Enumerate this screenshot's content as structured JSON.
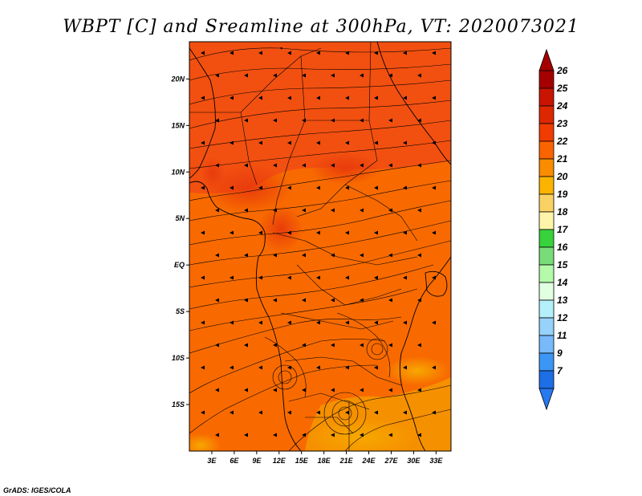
{
  "title": "WBPT [C] and Sreamline at 300hPa, VT: 2020073021",
  "credit": "GrADS: IGES/COLA",
  "map": {
    "lon_range": [
      0,
      35
    ],
    "lat_range": [
      -20,
      24
    ],
    "lat_ticks": [
      {
        "value": 20,
        "label": "20N"
      },
      {
        "value": 15,
        "label": "15N"
      },
      {
        "value": 10,
        "label": "10N"
      },
      {
        "value": 5,
        "label": "5N"
      },
      {
        "value": 0,
        "label": "EQ"
      },
      {
        "value": -5,
        "label": "5S"
      },
      {
        "value": -10,
        "label": "10S"
      },
      {
        "value": -15,
        "label": "15S"
      }
    ],
    "lon_ticks": [
      {
        "value": 3,
        "label": "3E"
      },
      {
        "value": 6,
        "label": "6E"
      },
      {
        "value": 9,
        "label": "9E"
      },
      {
        "value": 12,
        "label": "12E"
      },
      {
        "value": 15,
        "label": "15E"
      },
      {
        "value": 18,
        "label": "18E"
      },
      {
        "value": 21,
        "label": "21E"
      },
      {
        "value": 24,
        "label": "24E"
      },
      {
        "value": 27,
        "label": "27E"
      },
      {
        "value": 30,
        "label": "30E"
      },
      {
        "value": 33,
        "label": "33E"
      }
    ]
  },
  "colorbar": {
    "levels": [
      {
        "label": "26",
        "color": "#a50000"
      },
      {
        "label": "25",
        "color": "#c81400"
      },
      {
        "label": "24",
        "color": "#dc2800"
      },
      {
        "label": "23",
        "color": "#f03c00"
      },
      {
        "label": "22",
        "color": "#fa6400"
      },
      {
        "label": "21",
        "color": "#fa8c00"
      },
      {
        "label": "20",
        "color": "#fab400"
      },
      {
        "label": "19",
        "color": "#fad264"
      },
      {
        "label": "18",
        "color": "#fff5aa"
      },
      {
        "label": "17",
        "color": "#37d23c"
      },
      {
        "label": "16",
        "color": "#78dc78"
      },
      {
        "label": "15",
        "color": "#b4faaa"
      },
      {
        "label": "14",
        "color": "#e1ffe1"
      },
      {
        "label": "13",
        "color": "#b4f0fa"
      },
      {
        "label": "12",
        "color": "#96d2fa"
      },
      {
        "label": "11",
        "color": "#78b9fa"
      },
      {
        "label": "9",
        "color": "#3c96f5"
      },
      {
        "label": "7",
        "color": "#1e6ee6"
      }
    ],
    "extra_bottom_color": "#2878f0"
  }
}
